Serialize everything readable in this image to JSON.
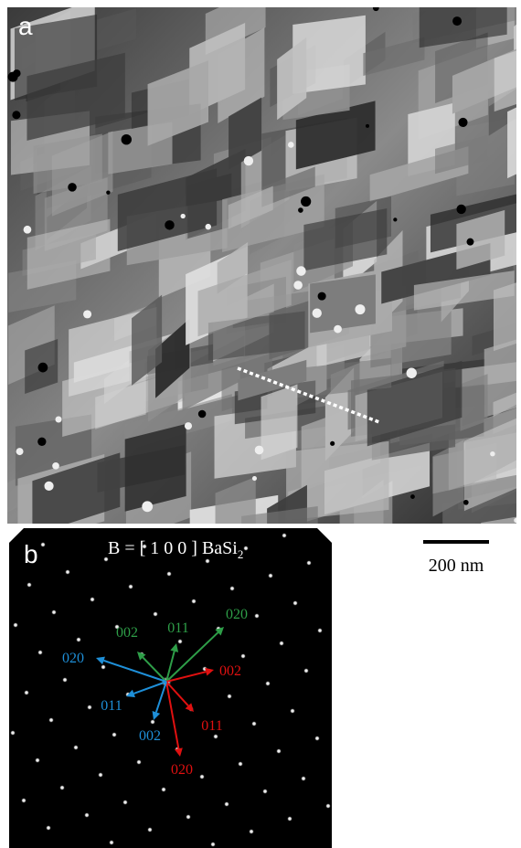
{
  "panels": [
    {
      "label": "a"
    },
    {
      "label": "b",
      "title": {
        "text": "B = [ 1 0 0 ] BaSi",
        "subscript": "2"
      },
      "reflections": [
        {
          "label": "002",
          "color": "#2e9e48"
        },
        {
          "label": "011",
          "color": "#2e9e48"
        },
        {
          "label": "020",
          "color": "#2e9e48"
        },
        {
          "label": "002",
          "color": "#e01010"
        },
        {
          "label": "011",
          "color": "#e01010"
        },
        {
          "label": "020",
          "color": "#e01010"
        },
        {
          "label": "020",
          "color": "#1e8fd8"
        },
        {
          "label": "011",
          "color": "#1e8fd8"
        },
        {
          "label": "002",
          "color": "#1e8fd8"
        }
      ]
    }
  ],
  "scale_bar": {
    "label": "200 nm"
  }
}
